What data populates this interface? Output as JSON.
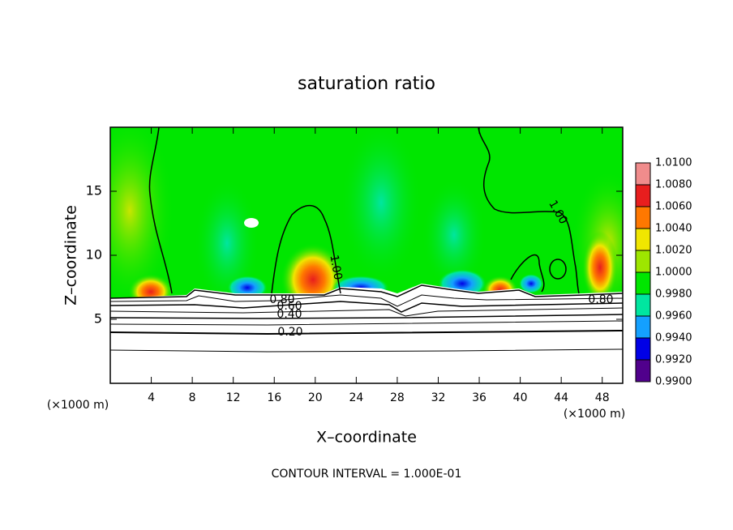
{
  "chart_data": {
    "type": "contour",
    "title": "saturation ratio",
    "xlabel": "X–coordinate",
    "ylabel": "Z–coordinate",
    "x_unit_label": "(×1000 m)",
    "y_unit_label": "(×1000 m)",
    "xlim": [
      0,
      50
    ],
    "xticks": [
      4,
      8,
      12,
      16,
      20,
      24,
      28,
      32,
      36,
      40,
      44,
      48
    ],
    "ylim": [
      0,
      20
    ],
    "yticks": [
      5,
      10,
      15
    ],
    "colorbar_levels": [
      {
        "value": 1.01,
        "label": "1.0100"
      },
      {
        "value": 1.008,
        "label": "1.0080"
      },
      {
        "value": 1.006,
        "label": "1.0060"
      },
      {
        "value": 1.004,
        "label": "1.0040"
      },
      {
        "value": 1.002,
        "label": "1.0020"
      },
      {
        "value": 1.0,
        "label": "1.0000"
      },
      {
        "value": 0.998,
        "label": "0.9980"
      },
      {
        "value": 0.996,
        "label": "0.9960"
      },
      {
        "value": 0.994,
        "label": "0.9940"
      },
      {
        "value": 0.992,
        "label": "0.9920"
      },
      {
        "value": 0.99,
        "label": "0.9900"
      }
    ],
    "colorbar_colors": [
      "#f08c8c",
      "#e81e1e",
      "#ff7800",
      "#f0e600",
      "#9ee600",
      "#00e600",
      "#00e6a0",
      "#14a0ff",
      "#0000e6",
      "#50008c"
    ],
    "contour_labels": [
      "1.00",
      "1.00",
      "0.80",
      "0.60",
      "0.40",
      "0.20",
      "0.80"
    ],
    "footnote": "CONTOUR INTERVAL = 1.000E-01"
  }
}
